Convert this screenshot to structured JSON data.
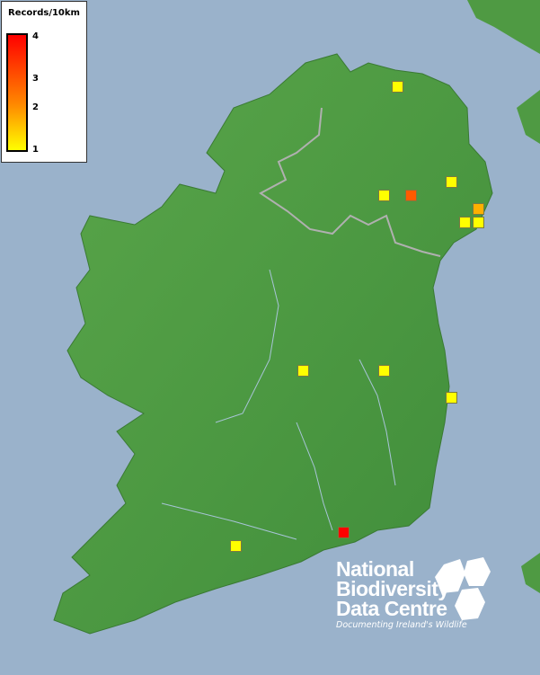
{
  "legend": {
    "title": "Records/10km",
    "ticks": [
      "4",
      "3",
      "2",
      "1"
    ],
    "colors": {
      "min": "#ffff00",
      "mid": "#ff8800",
      "max": "#ff0000"
    }
  },
  "records": [
    {
      "value": 1
    },
    {
      "value": 1
    },
    {
      "value": 3
    },
    {
      "value": 1
    },
    {
      "value": 2
    },
    {
      "value": 1
    },
    {
      "value": 1
    },
    {
      "value": 1
    },
    {
      "value": 1
    },
    {
      "value": 1
    },
    {
      "value": 4
    },
    {
      "value": 1
    }
  ],
  "logo": {
    "line1": "National",
    "line2": "Biodiversity",
    "line3": "Data Centre",
    "tagline": "Documenting Ireland's Wildlife"
  },
  "colors": {
    "sea": "#9ab2cb",
    "land": "#4f9a43",
    "border": "#b0b0b0"
  }
}
